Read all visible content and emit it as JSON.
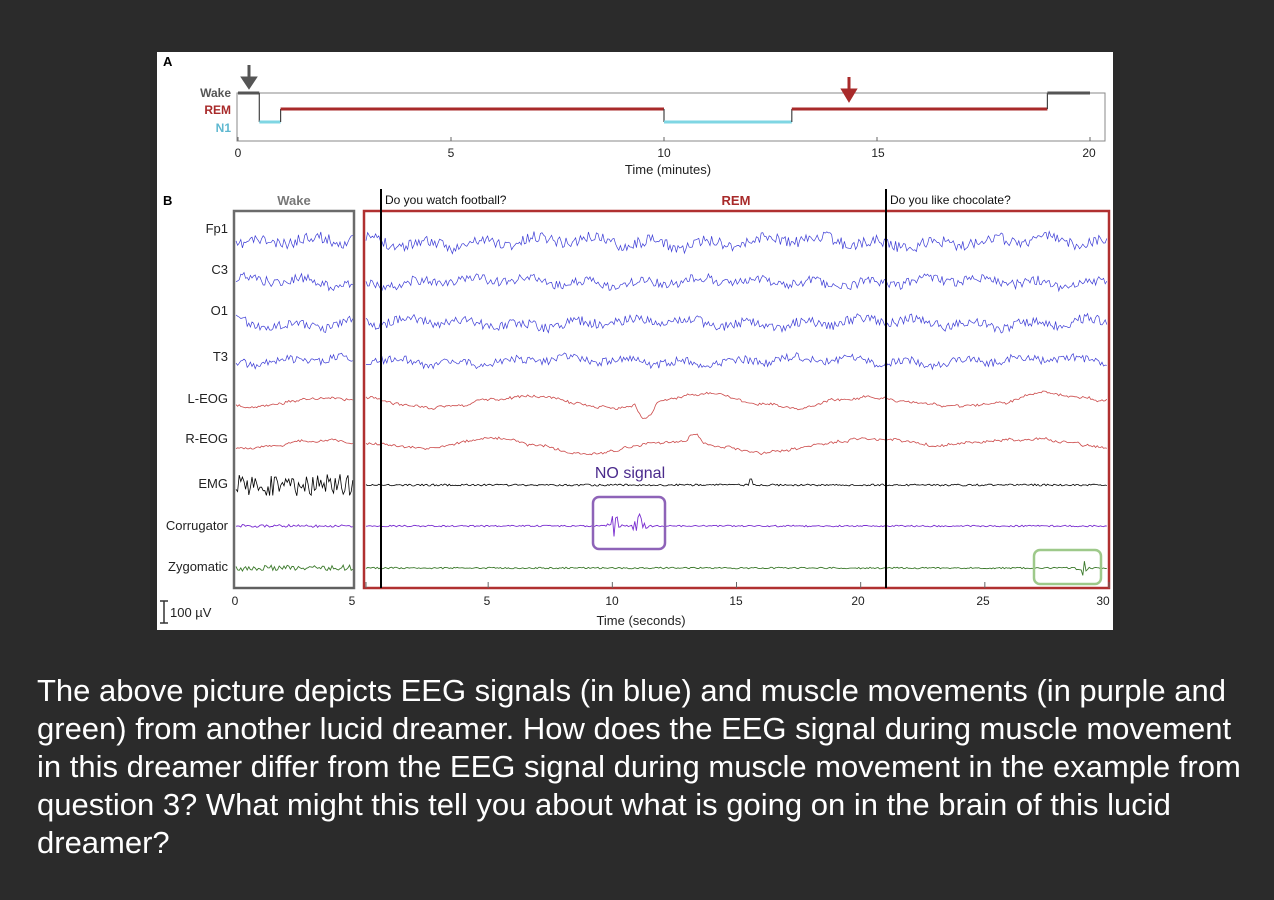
{
  "panel_a": {
    "letter": "A",
    "stage_labels": [
      "Wake",
      "REM",
      "N1"
    ],
    "x_ticks": [
      "0",
      "5",
      "10",
      "15",
      "20"
    ],
    "x_label": "Time (minutes)",
    "colors": {
      "wake": "#555555",
      "rem": "#a82a2a",
      "n1": "#7fd6e3"
    }
  },
  "panel_b": {
    "letter": "B",
    "wake_label": "Wake",
    "rem_label": "REM",
    "question_1": "Do you watch football?",
    "question_2": "Do you like chocolate?",
    "channels": [
      "Fp1",
      "C3",
      "O1",
      "T3",
      "L-EOG",
      "R-EOG",
      "EMG",
      "Corrugator",
      "Zygomatic"
    ],
    "no_signal_label": "NO signal",
    "wake_x_ticks": [
      "0",
      "5"
    ],
    "rem_x_ticks": [
      "5",
      "10",
      "15",
      "20",
      "25",
      "30"
    ],
    "x_label": "Time (seconds)",
    "scale_bar": "100 µV",
    "colors": {
      "eeg": "#3d3dd6",
      "eog": "#cc4a4a",
      "emg": "#000000",
      "corrugator": "#7a2ed0",
      "zygomatic": "#3c7a2c",
      "purple_box": "#8e63b8",
      "green_box": "#9ec98a"
    }
  },
  "chart_data": [
    {
      "type": "line",
      "title": "",
      "xlabel": "Time (minutes)",
      "ylabel": "",
      "xlim": [
        0,
        20
      ],
      "categories": [
        "Wake",
        "REM",
        "N1"
      ],
      "series": [
        {
          "name": "Hypnogram",
          "x": [
            0,
            0.5,
            0.5,
            1,
            1,
            10,
            10,
            13,
            13,
            19,
            19,
            20
          ],
          "values": [
            "Wake",
            "Wake",
            "N1",
            "N1",
            "REM",
            "REM",
            "N1",
            "N1",
            "REM",
            "REM",
            "Wake",
            "Wake"
          ]
        }
      ]
    },
    {
      "type": "line",
      "title": "",
      "xlabel": "Time (seconds)",
      "ylabel": "",
      "xlim": [
        0,
        30
      ],
      "categories": [
        "Fp1",
        "C3",
        "O1",
        "T3",
        "L-EOG",
        "R-EOG",
        "EMG",
        "Corrugator",
        "Zygomatic"
      ]
    }
  ],
  "question_text": "The above picture depicts EEG signals (in blue) and muscle movements (in purple and green) from another lucid dreamer. How does the EEG signal during muscle movement in this dreamer differ from the EEG signal during muscle movement in the example from question 3? What might this tell you about what is going on in the brain of this lucid dreamer?"
}
